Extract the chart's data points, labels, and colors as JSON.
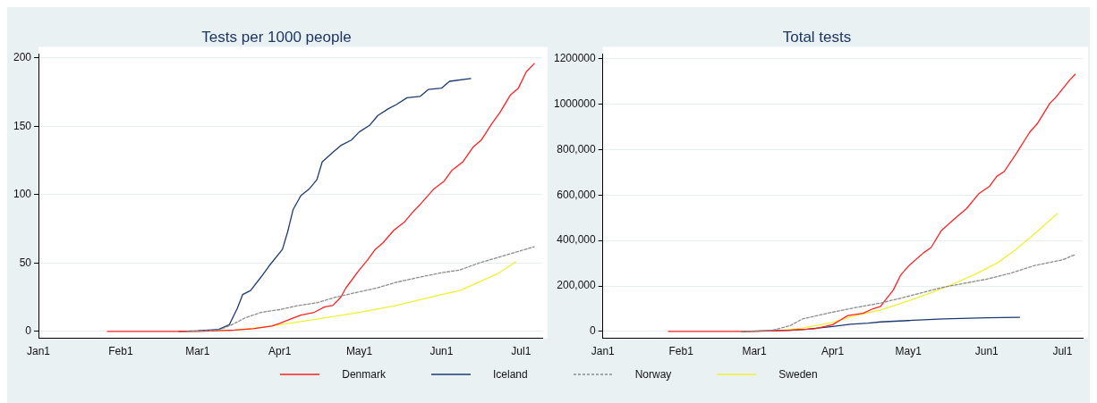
{
  "chart_data": [
    {
      "type": "line",
      "title": "Tests per 1000 people",
      "xlim": [
        "--01-01",
        "--07-09"
      ],
      "xticks": [
        {
          "value": "--01-01",
          "label": "Jan1"
        },
        {
          "value": "--02-01",
          "label": "Feb1"
        },
        {
          "value": "--03-01",
          "label": "Mar1"
        },
        {
          "value": "--04-01",
          "label": "Apr1"
        },
        {
          "value": "--05-01",
          "label": "May1"
        },
        {
          "value": "--06-01",
          "label": "Jun1"
        },
        {
          "value": "--07-01",
          "label": "Jul1"
        }
      ],
      "ylim": [
        -5,
        203
      ],
      "yticks": [
        0,
        50,
        100,
        150,
        200
      ],
      "grid": "y",
      "legend": "bottom",
      "marker": "none",
      "series": [
        {
          "name": "Denmark",
          "color": "#ff2020",
          "line_style": "solid",
          "x": [
            "--01-27",
            "--03-01",
            "--03-15",
            "--03-22",
            "--03-29",
            "--04-01",
            "--04-05",
            "--04-09",
            "--04-14",
            "--04-18",
            "--04-21",
            "--04-24",
            "--04-26",
            "--05-01",
            "--05-04",
            "--05-07",
            "--05-10",
            "--05-14",
            "--05-18",
            "--05-21",
            "--05-24",
            "--05-29",
            "--06-02",
            "--06-05",
            "--06-09",
            "--06-13",
            "--06-16",
            "--06-20",
            "--06-23",
            "--06-27",
            "--06-30",
            "--07-03",
            "--07-06"
          ],
          "values": [
            0,
            0,
            1,
            2,
            4,
            6,
            9,
            12,
            14,
            18,
            19,
            25,
            32,
            45,
            52,
            60,
            65,
            74,
            80,
            87,
            93,
            104,
            110,
            118,
            124,
            135,
            140,
            152,
            160,
            173,
            178,
            190,
            196
          ]
        },
        {
          "name": "Iceland",
          "color": "#1c3a72",
          "line_style": "solid",
          "x": [
            "--02-23",
            "--03-01",
            "--03-09",
            "--03-13",
            "--03-16",
            "--03-18",
            "--03-21",
            "--03-25",
            "--03-28",
            "--04-02",
            "--04-04",
            "--04-06",
            "--04-09",
            "--04-12",
            "--04-15",
            "--04-17",
            "--04-21",
            "--04-24",
            "--04-28",
            "--05-01",
            "--05-05",
            "--05-08",
            "--05-12",
            "--05-15",
            "--05-19",
            "--05-24",
            "--05-27",
            "--06-01",
            "--06-04",
            "--06-12"
          ],
          "values": [
            0,
            0.5,
            1.5,
            5,
            17,
            27,
            30,
            40,
            48,
            60,
            73,
            89,
            99.5,
            104,
            111,
            124,
            131,
            136,
            140,
            146,
            151,
            158,
            163,
            166,
            171,
            172,
            177,
            178,
            183,
            185
          ]
        },
        {
          "name": "Norway",
          "color": "#8c8c8c",
          "line_style": "dotted",
          "x": [
            "--02-26",
            "--03-09",
            "--03-14",
            "--03-19",
            "--03-25",
            "--04-01",
            "--04-08",
            "--04-15",
            "--04-22",
            "--05-01",
            "--05-08",
            "--05-15",
            "--05-22",
            "--06-01",
            "--06-08",
            "--06-15",
            "--06-22",
            "--06-29",
            "--07-06"
          ],
          "values": [
            0,
            1,
            5,
            10,
            14,
            16,
            19,
            21,
            25,
            29,
            32,
            36,
            39,
            43,
            45,
            50,
            54,
            58,
            62
          ]
        },
        {
          "name": "Sweden",
          "color": "#f0f030",
          "line_style": "solid",
          "x": [
            "--02-25",
            "--03-15",
            "--03-25",
            "--04-01",
            "--04-15",
            "--05-01",
            "--05-15",
            "--06-01",
            "--06-08",
            "--06-15",
            "--06-22",
            "--06-29"
          ],
          "values": [
            0,
            1,
            3,
            5,
            9,
            14,
            19,
            27,
            30,
            36,
            42,
            51
          ]
        }
      ]
    },
    {
      "type": "line",
      "title": "Total tests",
      "xlim": [
        "--01-01",
        "--07-09"
      ],
      "xticks": [
        {
          "value": "--01-01",
          "label": "Jan1"
        },
        {
          "value": "--02-01",
          "label": "Feb1"
        },
        {
          "value": "--03-01",
          "label": "Mar1"
        },
        {
          "value": "--04-01",
          "label": "Apr1"
        },
        {
          "value": "--05-01",
          "label": "May1"
        },
        {
          "value": "--06-01",
          "label": "Jun1"
        },
        {
          "value": "--07-01",
          "label": "Jul1"
        }
      ],
      "ylim": [
        -30000,
        1220000
      ],
      "yticks": [
        0,
        {
          "value": 200000,
          "label": "200,000"
        },
        {
          "value": 400000,
          "label": "400,000"
        },
        {
          "value": 600000,
          "label": "600,000"
        },
        {
          "value": 800000,
          "label": "800,000"
        },
        1000000,
        1200000
      ],
      "grid": "y",
      "marker": "none",
      "series": [
        {
          "color": "#ff2020",
          "line_style": "solid",
          "x": [
            "--01-27",
            "--03-01",
            "--03-15",
            "--03-25",
            "--04-01",
            "--04-04",
            "--04-07",
            "--04-13",
            "--04-17",
            "--04-20",
            "--04-22",
            "--04-25",
            "--04-28",
            "--05-01",
            "--05-07",
            "--05-10",
            "--05-14",
            "--05-20",
            "--05-24",
            "--05-29",
            "--06-02",
            "--06-05",
            "--06-08",
            "--06-13",
            "--06-18",
            "--06-21",
            "--06-26",
            "--06-28",
            "--07-04",
            "--07-06"
          ],
          "values": [
            0,
            0,
            5000,
            12000,
            30000,
            50000,
            70000,
            80000,
            100000,
            110000,
            140000,
            182000,
            249000,
            287000,
            346000,
            369000,
            443000,
            503000,
            540000,
            607000,
            637000,
            682000,
            704000,
            787000,
            876000,
            913000,
            1003000,
            1025000,
            1107000,
            1130000
          ]
        },
        {
          "color": "#1c3a72",
          "line_style": "solid",
          "x": [
            "--02-25",
            "--03-15",
            "--03-22",
            "--04-01",
            "--04-08",
            "--04-15",
            "--04-20",
            "--05-01",
            "--05-15",
            "--06-01",
            "--06-14"
          ],
          "values": [
            0,
            5000,
            10000,
            22000,
            32000,
            37000,
            42000,
            48000,
            55000,
            60000,
            62000
          ]
        },
        {
          "color": "#8c8c8c",
          "line_style": "dotted",
          "x": [
            "--02-25",
            "--03-08",
            "--03-15",
            "--03-20",
            "--04-01",
            "--04-10",
            "--04-20",
            "--05-01",
            "--05-15",
            "--06-01",
            "--06-10",
            "--06-20",
            "--07-01",
            "--07-06"
          ],
          "values": [
            0,
            5000,
            25000,
            55000,
            85000,
            105000,
            125000,
            155000,
            195000,
            230000,
            255000,
            290000,
            315000,
            338000
          ]
        },
        {
          "color": "#f0f030",
          "line_style": "solid",
          "x": [
            "--02-25",
            "--03-10",
            "--03-20",
            "--04-01",
            "--04-10",
            "--04-20",
            "--05-01",
            "--05-10",
            "--05-19",
            "--05-28",
            "--06-05",
            "--06-12",
            "--06-19",
            "--06-29"
          ],
          "values": [
            0,
            3000,
            15000,
            40000,
            70000,
            95000,
            135000,
            170000,
            210000,
            255000,
            300000,
            355000,
            420000,
            518000
          ]
        }
      ]
    }
  ]
}
